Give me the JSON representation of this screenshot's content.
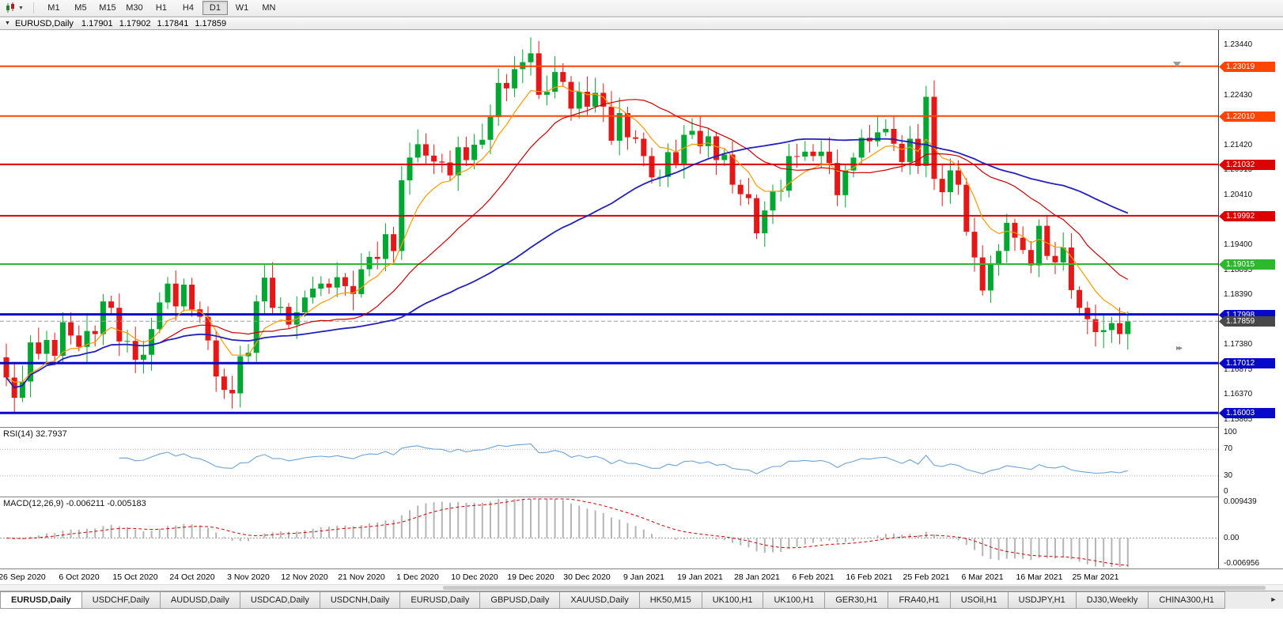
{
  "icons": {
    "toolbar_dropdown": "▼",
    "chart_menu": "▼",
    "tab_scroll_right": "►",
    "price_arrow": "▸▸"
  },
  "toolbar": {
    "timeframes": [
      {
        "label": "M1",
        "active": false
      },
      {
        "label": "M5",
        "active": false
      },
      {
        "label": "M15",
        "active": false
      },
      {
        "label": "M30",
        "active": false
      },
      {
        "label": "H1",
        "active": false
      },
      {
        "label": "H4",
        "active": false
      },
      {
        "label": "D1",
        "active": true
      },
      {
        "label": "W1",
        "active": false
      },
      {
        "label": "MN",
        "active": false
      }
    ]
  },
  "chart_header": {
    "symbol_period": "EURUSD,Daily",
    "ohlc": "1.17901 1.17902 1.17841 1.17859"
  },
  "chart_data": {
    "type": "candlestick",
    "title": "EURUSD,Daily",
    "closes": [
      1.1672,
      1.1631,
      1.1664,
      1.1743,
      1.172,
      1.1748,
      1.1716,
      1.1784,
      1.1757,
      1.1734,
      1.1766,
      1.176,
      1.1826,
      1.1813,
      1.1745,
      1.1746,
      1.1708,
      1.1718,
      1.177,
      1.1824,
      1.1862,
      1.1816,
      1.186,
      1.181,
      1.1795,
      1.1747,
      1.1674,
      1.1647,
      1.164,
      1.1715,
      1.1722,
      1.1826,
      1.1874,
      1.1813,
      1.1815,
      1.1779,
      1.1804,
      1.1834,
      1.1852,
      1.1862,
      1.1854,
      1.1875,
      1.1857,
      1.1841,
      1.1891,
      1.1916,
      1.1912,
      1.1962,
      1.1928,
      1.2071,
      1.2117,
      1.2144,
      1.2121,
      1.2109,
      1.2107,
      1.2081,
      1.2138,
      1.2112,
      1.2143,
      1.2153,
      1.2199,
      1.2268,
      1.2257,
      1.2296,
      1.231,
      1.2328,
      1.2244,
      1.225,
      1.229,
      1.227,
      1.2216,
      1.225,
      1.222,
      1.2248,
      1.222,
      1.2151,
      1.2207,
      1.2158,
      1.2155,
      1.212,
      1.2077,
      1.2078,
      1.2128,
      1.2105,
      1.2163,
      1.2171,
      1.214,
      1.216,
      1.2112,
      1.2123,
      1.2062,
      1.2043,
      1.2035,
      1.1964,
      1.201,
      1.2048,
      1.205,
      1.212,
      1.2119,
      1.2129,
      1.212,
      1.2129,
      1.2106,
      1.2041,
      1.2091,
      1.2117,
      1.2157,
      1.215,
      1.2168,
      1.2175,
      1.2145,
      1.2108,
      1.2155,
      1.21,
      1.224,
      1.2074,
      1.2047,
      1.2091,
      1.2062,
      1.1967,
      1.1915,
      1.1848,
      1.19,
      1.1928,
      1.1985,
      1.1955,
      1.193,
      1.1899,
      1.1979,
      1.1918,
      1.1905,
      1.1935,
      1.1849,
      1.1813,
      1.179,
      1.1764,
      1.1768,
      1.1782,
      1.176,
      1.1786
    ],
    "candle_up_color": "#00a832",
    "candle_down_color": "#e51717",
    "x_labels": [
      {
        "text": "26 Sep 2020",
        "index": 2
      },
      {
        "text": "6 Oct 2020",
        "index": 9
      },
      {
        "text": "15 Oct 2020",
        "index": 16
      },
      {
        "text": "24 Oct 2020",
        "index": 23
      },
      {
        "text": "3 Nov 2020",
        "index": 30
      },
      {
        "text": "12 Nov 2020",
        "index": 37
      },
      {
        "text": "21 Nov 2020",
        "index": 44
      },
      {
        "text": "1 Dec 2020",
        "index": 51
      },
      {
        "text": "10 Dec 2020",
        "index": 58
      },
      {
        "text": "19 Dec 2020",
        "index": 65
      },
      {
        "text": "30 Dec 2020",
        "index": 72
      },
      {
        "text": "9 Jan 2021",
        "index": 79
      },
      {
        "text": "19 Jan 2021",
        "index": 86
      },
      {
        "text": "28 Jan 2021",
        "index": 93
      },
      {
        "text": "6 Feb 2021",
        "index": 100
      },
      {
        "text": "16 Feb 2021",
        "index": 107
      },
      {
        "text": "25 Feb 2021",
        "index": 114
      },
      {
        "text": "6 Mar 2021",
        "index": 121
      },
      {
        "text": "16 Mar 2021",
        "index": 128
      },
      {
        "text": "25 Mar 2021",
        "index": 135
      }
    ],
    "price_axis": {
      "max": 1.2375,
      "min": 1.1572,
      "ticks": [
        1.2344,
        1.22935,
        1.2243,
        1.21925,
        1.2142,
        1.20915,
        1.2041,
        1.19905,
        1.194,
        1.18895,
        1.1839,
        1.17885,
        1.1738,
        1.16875,
        1.1637,
        1.15865
      ]
    },
    "h_lines": [
      {
        "price": 1.23019,
        "color": "#ff4500",
        "thickness": 2
      },
      {
        "price": 1.2201,
        "color": "#ff4500",
        "thickness": 2
      },
      {
        "price": 1.21032,
        "color": "#dd0000",
        "thickness": 2
      },
      {
        "price": 1.19992,
        "color": "#dd0000",
        "thickness": 2
      },
      {
        "price": 1.19015,
        "color": "#2eb82e",
        "thickness": 2
      },
      {
        "price": 1.17998,
        "color": "#0808c8",
        "thickness": 3
      },
      {
        "price": 1.17012,
        "color": "#0808c8",
        "thickness": 3
      },
      {
        "price": 1.16003,
        "color": "#0808c8",
        "thickness": 3
      }
    ],
    "current_price": {
      "value": 1.17859,
      "line_color": "#9a9a9a",
      "label_bg": "#484848"
    },
    "moving_averages": [
      {
        "type": "ema",
        "period": 8,
        "color": "#ff9900"
      },
      {
        "type": "sma",
        "period": 20,
        "color": "#cc0000"
      },
      {
        "type": "sma",
        "period": 50,
        "color": "#2121bb"
      }
    ],
    "rsi": {
      "label": "RSI(14) 32.7937",
      "period": 14,
      "value": 32.7937,
      "levels": [
        70,
        30
      ],
      "axis_ticks": [
        100,
        70,
        30,
        0
      ],
      "range": [
        0,
        100
      ],
      "line_color": "#6ba3d6"
    },
    "macd": {
      "label": "MACD(12,26,9) -0.006211 -0.005183",
      "fast": 12,
      "slow": 26,
      "signal_period": 9,
      "macd_value": -0.006211,
      "signal_value": -0.005183,
      "range": [
        -0.006956,
        0.009439
      ],
      "axis_ticks": [
        {
          "text": "0.009439",
          "value": 0.009439
        },
        {
          "text": "0.00",
          "value": 0
        },
        {
          "text": "-0.006956",
          "value": -0.006956
        }
      ],
      "histogram_color": "#b5b5b5",
      "signal_color": "#d00000"
    }
  },
  "tabs": [
    {
      "label": "EURUS­D,Daily",
      "active": true
    },
    {
      "label": "USDCHF,Daily",
      "active": false
    },
    {
      "label": "AUDUSD,Daily",
      "active": false
    },
    {
      "label": "USDCAD,Daily",
      "active": false
    },
    {
      "label": "USDCNH,Daily",
      "active": false
    },
    {
      "label": "EURUSD,Daily",
      "active": false
    },
    {
      "label": "GBPUSD,Daily",
      "active": false
    },
    {
      "label": "XAUUSD,Daily",
      "active": false
    },
    {
      "label": "HK50,M15",
      "active": false
    },
    {
      "label": "UK100,H1",
      "active": false
    },
    {
      "label": "UK100,H1",
      "active": false
    },
    {
      "label": "GER30,H1",
      "active": false
    },
    {
      "label": "FRA40,H1",
      "active": false
    },
    {
      "label": "USOil,H1",
      "active": false
    },
    {
      "label": "USDJPY,H1",
      "active": false
    },
    {
      "label": "DJ30,Weekly",
      "active": false
    },
    {
      "label": "CHINA300,H1",
      "active": false
    }
  ]
}
